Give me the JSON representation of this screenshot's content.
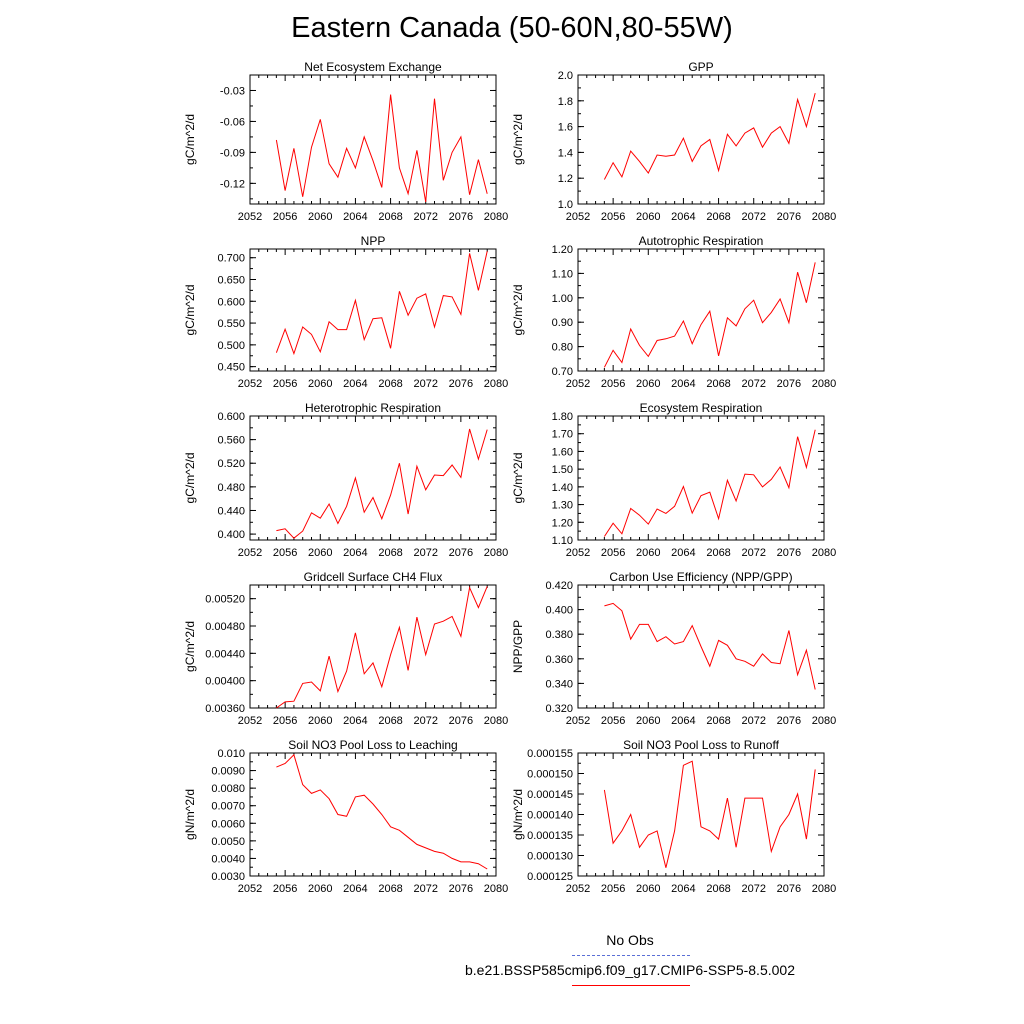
{
  "title": "Eastern Canada (50-60N,80-55W)",
  "line_color": "#ff0000",
  "obs_color": "#5a6fd6",
  "legend": {
    "obs_label": "No Obs",
    "run_label": "b.e21.BSSP585cmip6.f09_g17.CMIP6-SSP5-8.5.002"
  },
  "chart_data": [
    {
      "type": "line",
      "title": "Net Ecosystem Exchange",
      "ylabel": "gC/m^2/d",
      "xlim": [
        2052,
        2080
      ],
      "xticks": [
        "2052",
        "2056",
        "2060",
        "2064",
        "2068",
        "2072",
        "2076",
        "2080"
      ],
      "ylim": [
        -0.14,
        -0.015
      ],
      "yticks": [
        "-0.03",
        "-0.06",
        "-0.09",
        "-0.12"
      ],
      "ytick_values": [
        -0.03,
        -0.06,
        -0.09,
        -0.12
      ],
      "x_start": 2055,
      "values": [
        -0.078,
        -0.127,
        -0.086,
        -0.133,
        -0.085,
        -0.058,
        -0.101,
        -0.114,
        -0.086,
        -0.105,
        -0.075,
        -0.098,
        -0.124,
        -0.034,
        -0.105,
        -0.13,
        -0.088,
        -0.138,
        -0.038,
        -0.117,
        -0.09,
        -0.075,
        -0.131,
        -0.097,
        -0.13
      ]
    },
    {
      "type": "line",
      "title": "GPP",
      "ylabel": "gC/m^2/d",
      "xlim": [
        2052,
        2080
      ],
      "xticks": [
        "2052",
        "2056",
        "2060",
        "2064",
        "2068",
        "2072",
        "2076",
        "2080"
      ],
      "ylim": [
        1.0,
        2.0
      ],
      "yticks": [
        "1.0",
        "1.2",
        "1.4",
        "1.6",
        "1.8",
        "2.0"
      ],
      "ytick_values": [
        1.0,
        1.2,
        1.4,
        1.6,
        1.8,
        2.0
      ],
      "x_start": 2055,
      "values": [
        1.19,
        1.32,
        1.21,
        1.41,
        1.33,
        1.24,
        1.38,
        1.37,
        1.38,
        1.51,
        1.33,
        1.45,
        1.5,
        1.26,
        1.54,
        1.45,
        1.55,
        1.59,
        1.44,
        1.55,
        1.6,
        1.47,
        1.81,
        1.6,
        1.86
      ]
    },
    {
      "type": "line",
      "title": "NPP",
      "ylabel": "gC/m^2/d",
      "xlim": [
        2052,
        2080
      ],
      "xticks": [
        "2052",
        "2056",
        "2060",
        "2064",
        "2068",
        "2072",
        "2076",
        "2080"
      ],
      "ylim": [
        0.44,
        0.72
      ],
      "yticks": [
        "0.450",
        "0.500",
        "0.550",
        "0.600",
        "0.650",
        "0.700"
      ],
      "ytick_values": [
        0.45,
        0.5,
        0.55,
        0.6,
        0.65,
        0.7
      ],
      "x_start": 2055,
      "values": [
        0.482,
        0.536,
        0.48,
        0.541,
        0.524,
        0.484,
        0.553,
        0.535,
        0.535,
        0.602,
        0.512,
        0.56,
        0.562,
        0.492,
        0.623,
        0.568,
        0.607,
        0.617,
        0.541,
        0.613,
        0.61,
        0.57,
        0.71,
        0.625,
        0.715
      ]
    },
    {
      "type": "line",
      "title": "Autotrophic Respiration",
      "ylabel": "gC/m^2/d",
      "xlim": [
        2052,
        2080
      ],
      "xticks": [
        "2052",
        "2056",
        "2060",
        "2064",
        "2068",
        "2072",
        "2076",
        "2080"
      ],
      "ylim": [
        0.7,
        1.2
      ],
      "yticks": [
        "0.70",
        "0.80",
        "0.90",
        "1.00",
        "1.10",
        "1.20"
      ],
      "ytick_values": [
        0.7,
        0.8,
        0.9,
        1.0,
        1.1,
        1.2
      ],
      "x_start": 2055,
      "values": [
        0.715,
        0.785,
        0.735,
        0.872,
        0.805,
        0.76,
        0.825,
        0.832,
        0.843,
        0.905,
        0.812,
        0.89,
        0.945,
        0.762,
        0.918,
        0.885,
        0.955,
        0.99,
        0.898,
        0.94,
        0.995,
        0.898,
        1.105,
        0.98,
        1.145
      ]
    },
    {
      "type": "line",
      "title": "Heterotrophic Respiration",
      "ylabel": "gC/m^2/d",
      "xlim": [
        2052,
        2080
      ],
      "xticks": [
        "2052",
        "2056",
        "2060",
        "2064",
        "2068",
        "2072",
        "2076",
        "2080"
      ],
      "ylim": [
        0.39,
        0.6
      ],
      "yticks": [
        "0.400",
        "0.440",
        "0.480",
        "0.520",
        "0.560",
        "0.600"
      ],
      "ytick_values": [
        0.4,
        0.44,
        0.48,
        0.52,
        0.56,
        0.6
      ],
      "x_start": 2055,
      "values": [
        0.406,
        0.409,
        0.393,
        0.405,
        0.436,
        0.427,
        0.451,
        0.418,
        0.447,
        0.495,
        0.437,
        0.462,
        0.426,
        0.466,
        0.52,
        0.434,
        0.515,
        0.475,
        0.5,
        0.499,
        0.517,
        0.496,
        0.578,
        0.527,
        0.577
      ]
    },
    {
      "type": "line",
      "title": "Ecosystem Respiration",
      "ylabel": "gC/m^2/d",
      "xlim": [
        2052,
        2080
      ],
      "xticks": [
        "2052",
        "2056",
        "2060",
        "2064",
        "2068",
        "2072",
        "2076",
        "2080"
      ],
      "ylim": [
        1.1,
        1.8
      ],
      "yticks": [
        "1.10",
        "1.20",
        "1.30",
        "1.40",
        "1.50",
        "1.60",
        "1.70",
        "1.80"
      ],
      "ytick_values": [
        1.1,
        1.2,
        1.3,
        1.4,
        1.5,
        1.6,
        1.7,
        1.8
      ],
      "x_start": 2055,
      "values": [
        1.12,
        1.195,
        1.135,
        1.278,
        1.24,
        1.19,
        1.275,
        1.25,
        1.29,
        1.402,
        1.252,
        1.35,
        1.37,
        1.22,
        1.437,
        1.32,
        1.472,
        1.468,
        1.4,
        1.442,
        1.512,
        1.395,
        1.683,
        1.51,
        1.722
      ]
    },
    {
      "type": "line",
      "title": "Gridcell Surface CH4 Flux",
      "ylabel": "gC/m^2/d",
      "xlim": [
        2052,
        2080
      ],
      "xticks": [
        "2052",
        "2056",
        "2060",
        "2064",
        "2068",
        "2072",
        "2076",
        "2080"
      ],
      "ylim": [
        0.0036,
        0.0054
      ],
      "yticks": [
        "0.00360",
        "0.00400",
        "0.00440",
        "0.00480",
        "0.00520"
      ],
      "ytick_values": [
        0.0036,
        0.004,
        0.0044,
        0.0048,
        0.0052
      ],
      "x_start": 2055,
      "values": [
        0.0036,
        0.00369,
        0.0037,
        0.00396,
        0.00398,
        0.00385,
        0.00436,
        0.00384,
        0.00414,
        0.0047,
        0.0041,
        0.00426,
        0.00391,
        0.00438,
        0.00478,
        0.00415,
        0.00493,
        0.00438,
        0.00483,
        0.00487,
        0.00494,
        0.00465,
        0.00536,
        0.00507,
        0.00538
      ]
    },
    {
      "type": "line",
      "title": "Carbon Use Efficiency (NPP/GPP)",
      "ylabel": "NPP/GPP",
      "xlim": [
        2052,
        2080
      ],
      "xticks": [
        "2052",
        "2056",
        "2060",
        "2064",
        "2068",
        "2072",
        "2076",
        "2080"
      ],
      "ylim": [
        0.32,
        0.42
      ],
      "yticks": [
        "0.320",
        "0.340",
        "0.360",
        "0.380",
        "0.400",
        "0.420"
      ],
      "ytick_values": [
        0.32,
        0.34,
        0.36,
        0.38,
        0.4,
        0.42
      ],
      "x_start": 2055,
      "values": [
        0.403,
        0.405,
        0.399,
        0.376,
        0.388,
        0.388,
        0.374,
        0.378,
        0.372,
        0.374,
        0.387,
        0.37,
        0.354,
        0.375,
        0.371,
        0.36,
        0.358,
        0.354,
        0.364,
        0.357,
        0.356,
        0.383,
        0.347,
        0.367,
        0.335
      ]
    },
    {
      "type": "line",
      "title": "Soil NO3 Pool Loss to Leaching",
      "ylabel": "gN/m^2/d",
      "xlim": [
        2052,
        2080
      ],
      "xticks": [
        "2052",
        "2056",
        "2060",
        "2064",
        "2068",
        "2072",
        "2076",
        "2080"
      ],
      "ylim": [
        0.003,
        0.01
      ],
      "yticks": [
        "0.0030",
        "0.0040",
        "0.0050",
        "0.0060",
        "0.0070",
        "0.0080",
        "0.0090",
        "0.010"
      ],
      "ytick_values": [
        0.003,
        0.004,
        0.005,
        0.006,
        0.007,
        0.008,
        0.009,
        0.01
      ],
      "x_start": 2055,
      "values": [
        0.0092,
        0.0094,
        0.0099,
        0.0082,
        0.0077,
        0.0079,
        0.0074,
        0.0065,
        0.0064,
        0.0075,
        0.0076,
        0.0071,
        0.0065,
        0.0058,
        0.0056,
        0.0052,
        0.0048,
        0.0046,
        0.0044,
        0.0043,
        0.004,
        0.0038,
        0.0038,
        0.0037,
        0.0034
      ]
    },
    {
      "type": "line",
      "title": "Soil NO3 Pool Loss to Runoff",
      "ylabel": "gN/m^2/d",
      "xlim": [
        2052,
        2080
      ],
      "xticks": [
        "2052",
        "2056",
        "2060",
        "2064",
        "2068",
        "2072",
        "2076",
        "2080"
      ],
      "ylim": [
        0.000125,
        0.000155
      ],
      "yticks": [
        "0.000125",
        "0.000130",
        "0.000135",
        "0.000140",
        "0.000145",
        "0.000150",
        "0.000155"
      ],
      "ytick_values": [
        0.000125,
        0.00013,
        0.000135,
        0.00014,
        0.000145,
        0.00015,
        0.000155
      ],
      "x_start": 2055,
      "values": [
        0.000146,
        0.000133,
        0.000136,
        0.00014,
        0.000132,
        0.000135,
        0.000136,
        0.000127,
        0.000136,
        0.000152,
        0.000153,
        0.000137,
        0.000136,
        0.000134,
        0.000144,
        0.000132,
        0.000144,
        0.000144,
        0.000144,
        0.000131,
        0.000137,
        0.00014,
        0.000145,
        0.000134,
        0.000151
      ]
    }
  ]
}
